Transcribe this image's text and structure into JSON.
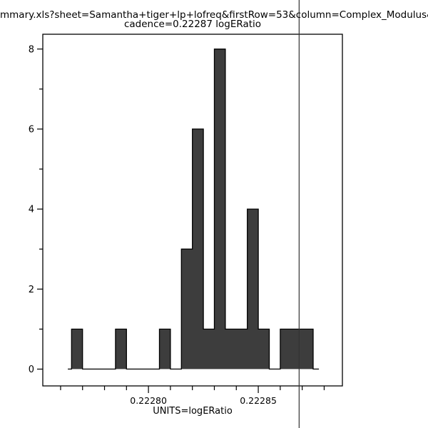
{
  "header": {
    "title_line1": "mmary.xls?sheet=Samantha+tiger+lp+lofreq&firstRow=53&column=Complex_Modulus&depende",
    "title_line2": "cadence=0.22287 logERatio"
  },
  "chart_data": {
    "type": "bar",
    "subtype": "histogram",
    "title": "cadence=0.22287 logERatio",
    "xlabel": "UNITS=logERatio",
    "ylabel": "",
    "bin_start": 0.222765,
    "bin_width": 5e-06,
    "counts": [
      1,
      0,
      0,
      0,
      1,
      0,
      0,
      0,
      1,
      0,
      3,
      6,
      1,
      8,
      1,
      1,
      4,
      1,
      0,
      1,
      1,
      1
    ],
    "zero_line_x": [
      0.2227633,
      0.2228776
    ],
    "xlim": [
      0.2227519,
      0.2228883
    ],
    "ylim": [
      -0.42,
      8.37
    ],
    "x_major_ticks": [
      {
        "value": 0.2228,
        "label": "0.22280"
      },
      {
        "value": 0.22285,
        "label": "0.22285"
      }
    ],
    "x_minor_ticks": [
      0.22276,
      0.22277,
      0.22278,
      0.22279,
      0.22281,
      0.22282,
      0.22283,
      0.22284,
      0.22286,
      0.22287,
      0.22288
    ],
    "y_major_ticks": [
      {
        "value": 0,
        "label": "0"
      },
      {
        "value": 2,
        "label": "2"
      },
      {
        "value": 4,
        "label": "4"
      },
      {
        "value": 6,
        "label": "6"
      },
      {
        "value": 8,
        "label": "8"
      }
    ],
    "y_minor_ticks": [
      1,
      3,
      5,
      7
    ],
    "marker_x": 0.2228686,
    "bar_fill": "#3d3d3d",
    "bar_edge": "#000000",
    "axis_color": "#000000",
    "marker_color": "#333333",
    "grid": false,
    "legend": null
  }
}
